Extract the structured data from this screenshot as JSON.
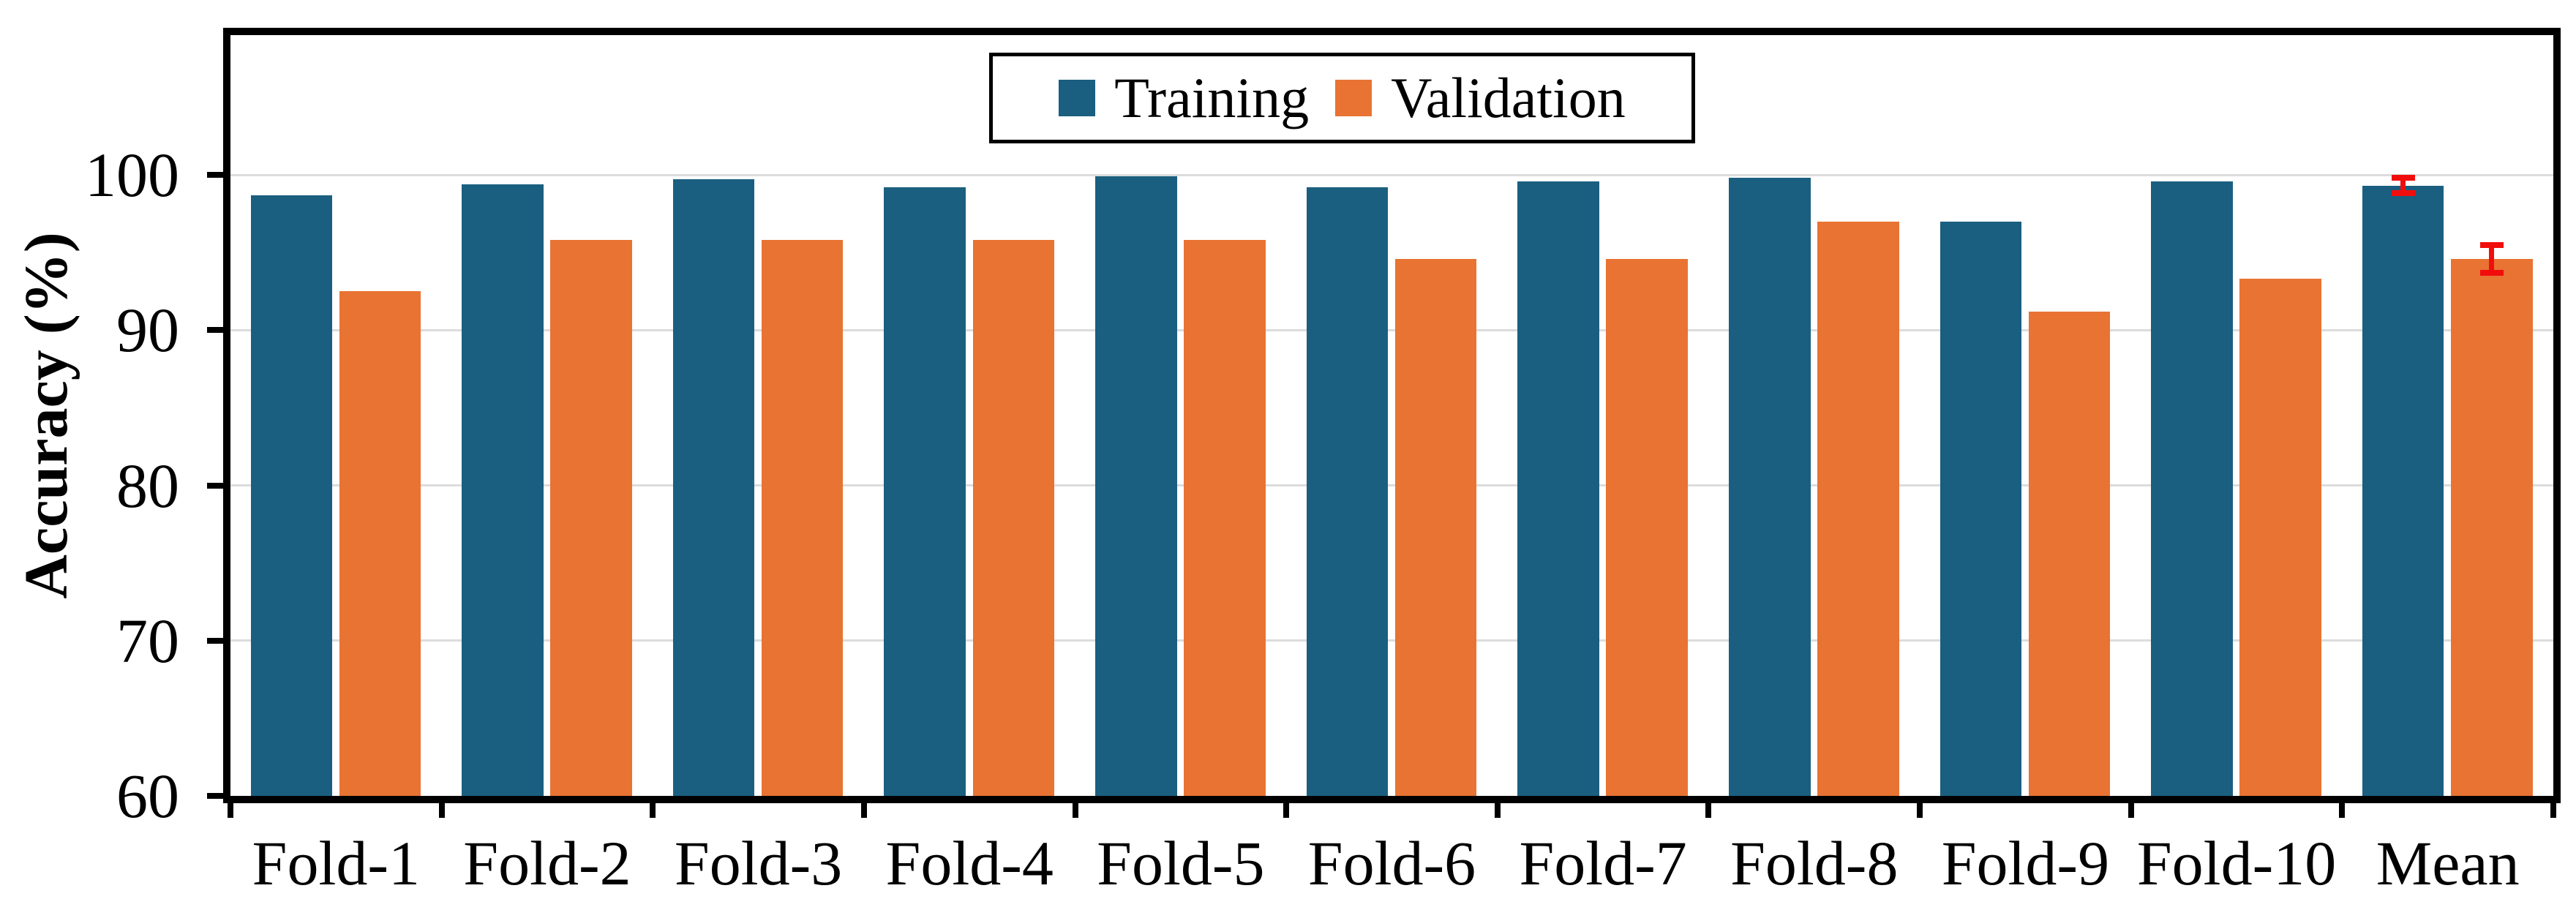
{
  "figure": {
    "kind": "grouped bar chart with error bars on mean",
    "background_color": "#ffffff",
    "frame_color": "#000000"
  },
  "legend": {
    "position": "top-center",
    "border_color": "#000000",
    "items": [
      {
        "label": "Training",
        "color": "#1A5F80"
      },
      {
        "label": "Validation",
        "color": "#E87333"
      }
    ]
  },
  "chart_data": {
    "type": "bar",
    "title": "",
    "xlabel": "",
    "ylabel": "Accuracy (%)",
    "categories": [
      "Fold-1",
      "Fold-2",
      "Fold-3",
      "Fold-4",
      "Fold-5",
      "Fold-6",
      "Fold-7",
      "Fold-8",
      "Fold-9",
      "Fold-10",
      "Mean"
    ],
    "series": [
      {
        "name": "Training",
        "color": "#1A5F80",
        "values": [
          98.7,
          99.4,
          99.7,
          99.2,
          99.9,
          99.2,
          99.6,
          99.8,
          97.0,
          99.6,
          99.3
        ],
        "error": [
          null,
          null,
          null,
          null,
          null,
          null,
          null,
          null,
          null,
          null,
          0.5
        ]
      },
      {
        "name": "Validation",
        "color": "#E87333",
        "values": [
          92.5,
          95.8,
          95.8,
          95.8,
          95.8,
          94.6,
          94.6,
          97.0,
          91.2,
          93.3,
          94.6
        ],
        "error": [
          null,
          null,
          null,
          null,
          null,
          null,
          null,
          null,
          null,
          null,
          0.9
        ]
      }
    ],
    "error_bar_color": "#F20D0D",
    "ylim": [
      60,
      109
    ],
    "yticks": [
      60,
      70,
      80,
      90,
      100
    ],
    "grid": "horizontal",
    "grid_color": "#DCDCDC",
    "tick_color": "#000000",
    "legend_position": "top-center"
  }
}
